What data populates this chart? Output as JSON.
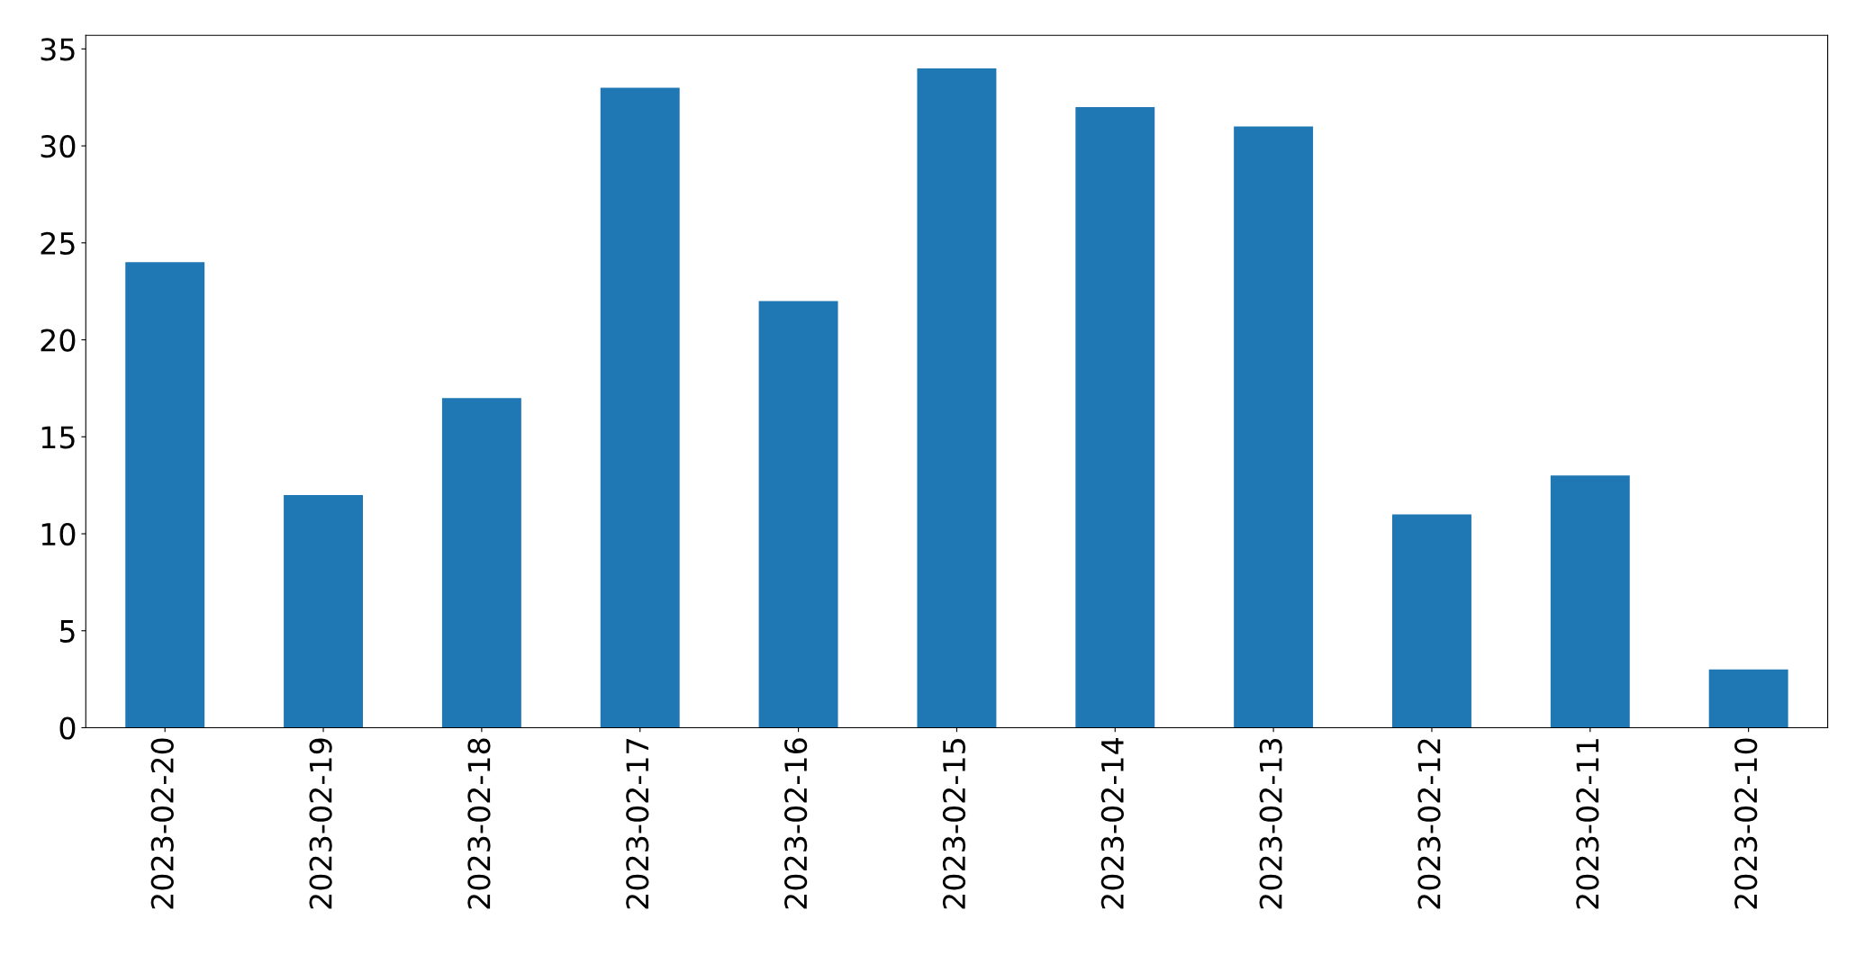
{
  "chart_data": {
    "type": "bar",
    "categories": [
      "2023-02-20",
      "2023-02-19",
      "2023-02-18",
      "2023-02-17",
      "2023-02-16",
      "2023-02-15",
      "2023-02-14",
      "2023-02-13",
      "2023-02-12",
      "2023-02-11",
      "2023-02-10"
    ],
    "values": [
      24,
      12,
      17,
      33,
      22,
      34,
      32,
      31,
      11,
      13,
      3
    ],
    "color": "#1f77b4",
    "ylim": [
      0,
      35.7
    ],
    "yticks": [
      0,
      5,
      10,
      15,
      20,
      25,
      30,
      35
    ],
    "grid": false,
    "legend": false
  }
}
